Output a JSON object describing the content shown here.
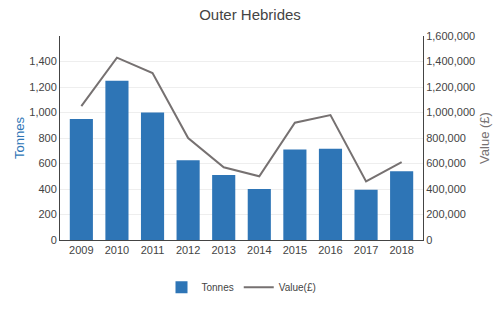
{
  "chart_data": {
    "type": "bar",
    "title": "Outer Hebrides",
    "categories": [
      "2009",
      "2010",
      "2011",
      "2012",
      "2013",
      "2014",
      "2015",
      "2016",
      "2017",
      "2018"
    ],
    "series": [
      {
        "name": "Tonnes",
        "type": "bar",
        "color": "#2E75B6",
        "values": [
          950,
          1250,
          1000,
          625,
          510,
          400,
          710,
          715,
          395,
          540
        ]
      },
      {
        "name": "Value(£)",
        "type": "line",
        "color": "#767171",
        "axis": "y2",
        "values": [
          1050000,
          1430000,
          1310000,
          800000,
          570000,
          500000,
          920000,
          980000,
          460000,
          610000
        ]
      }
    ],
    "ylabel": "Tonnes",
    "y2label": "Value (£)",
    "ylim": [
      0,
      1600
    ],
    "yticks": [
      0,
      200,
      400,
      600,
      800,
      {
        "value": 1000,
        "label": "1,000"
      },
      {
        "value": 1200,
        "label": "1,200"
      },
      {
        "value": 1400,
        "label": "1,400"
      }
    ],
    "y2lim": [
      0,
      1600000
    ],
    "y2ticks": [
      0,
      {
        "value": 200000,
        "label": "200,000"
      },
      {
        "value": 400000,
        "label": "400,000"
      },
      {
        "value": 600000,
        "label": "600,000"
      },
      {
        "value": 800000,
        "label": "800,000"
      },
      {
        "value": 1000000,
        "label": "1,000,000"
      },
      {
        "value": 1200000,
        "label": "1,200,000"
      },
      {
        "value": 1400000,
        "label": "1,400,000"
      },
      {
        "value": 1600000,
        "label": "1,600,000"
      }
    ],
    "grid": true,
    "legend": "bottom"
  }
}
